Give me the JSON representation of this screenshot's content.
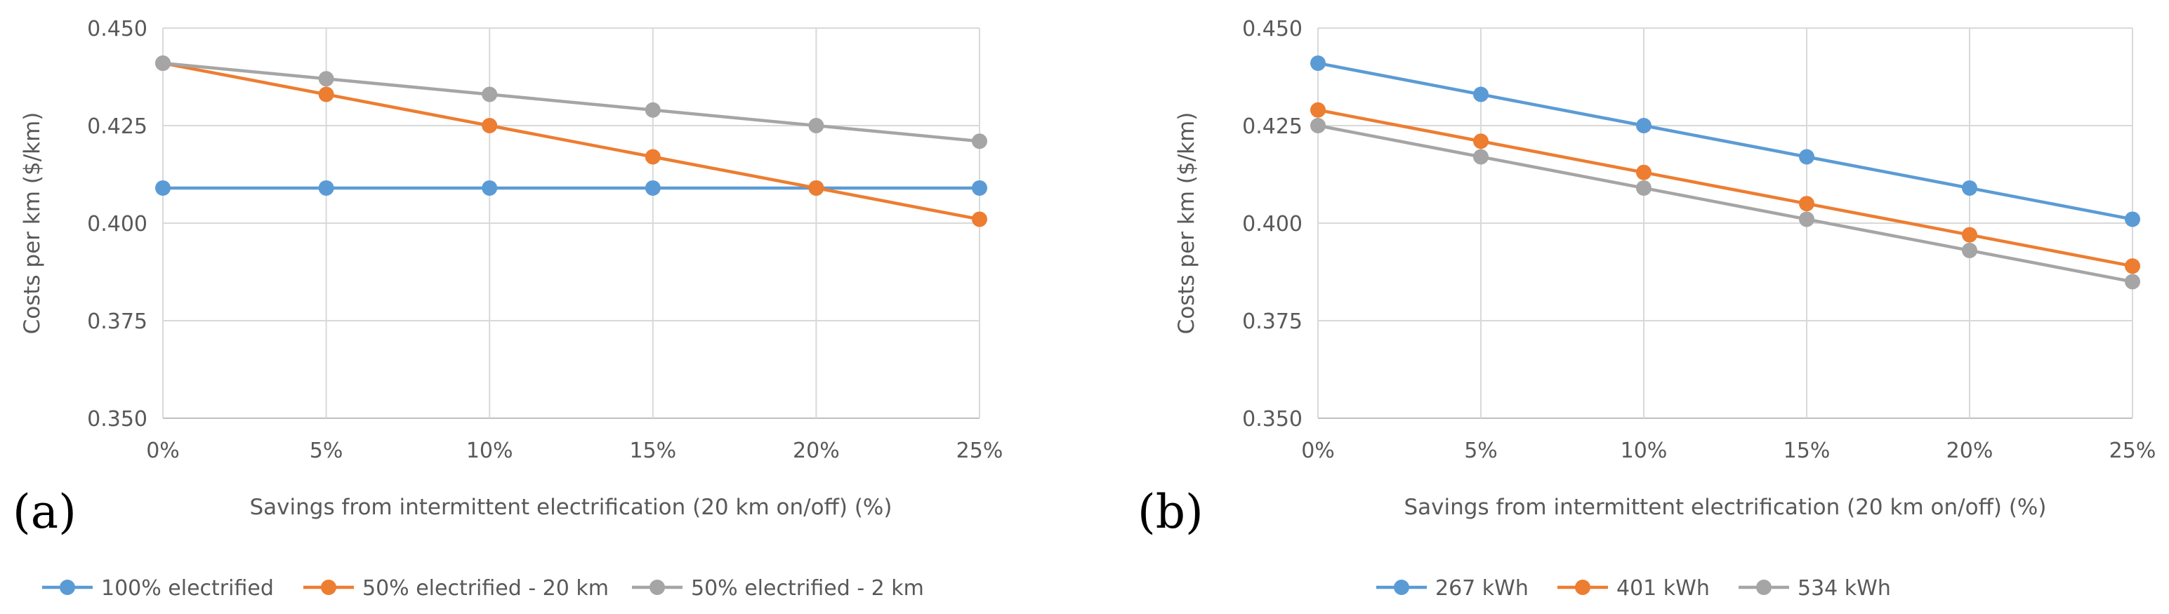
{
  "chart_data": [
    {
      "panel_label": "(a)",
      "type": "line",
      "title": "",
      "xlabel": "Savings from intermittent electrification (20 km on/off) (%)",
      "ylabel": "Costs per km ($/km)",
      "categories": [
        "0%",
        "5%",
        "10%",
        "15%",
        "20%",
        "25%"
      ],
      "y_ticks": [
        "0.350",
        "0.375",
        "0.400",
        "0.425",
        "0.450"
      ],
      "ylim": [
        0.35,
        0.45
      ],
      "grid": true,
      "legend_position": "bottom",
      "series": [
        {
          "name": "100% electrified",
          "color": "#5b9bd5",
          "values": [
            0.409,
            0.409,
            0.409,
            0.409,
            0.409,
            0.409
          ]
        },
        {
          "name": "50% electrified - 20 km",
          "color": "#ed7d31",
          "values": [
            0.441,
            0.433,
            0.425,
            0.417,
            0.409,
            0.401
          ]
        },
        {
          "name": "50% electrified - 2 km",
          "color": "#a5a5a5",
          "values": [
            0.441,
            0.437,
            0.433,
            0.429,
            0.425,
            0.421
          ]
        }
      ]
    },
    {
      "panel_label": "(b)",
      "type": "line",
      "title": "",
      "xlabel": "Savings from intermittent electrification (20 km on/off) (%)",
      "ylabel": "Costs per km ($/km)",
      "categories": [
        "0%",
        "5%",
        "10%",
        "15%",
        "20%",
        "25%"
      ],
      "y_ticks": [
        "0.350",
        "0.375",
        "0.400",
        "0.425",
        "0.450"
      ],
      "ylim": [
        0.35,
        0.45
      ],
      "grid": true,
      "legend_position": "bottom",
      "series": [
        {
          "name": "267 kWh",
          "color": "#5b9bd5",
          "values": [
            0.441,
            0.433,
            0.425,
            0.417,
            0.409,
            0.401
          ]
        },
        {
          "name": "401 kWh",
          "color": "#ed7d31",
          "values": [
            0.429,
            0.421,
            0.413,
            0.405,
            0.397,
            0.389
          ]
        },
        {
          "name": "534 kWh",
          "color": "#a5a5a5",
          "values": [
            0.425,
            0.417,
            0.409,
            0.401,
            0.393,
            0.385
          ]
        }
      ]
    }
  ]
}
